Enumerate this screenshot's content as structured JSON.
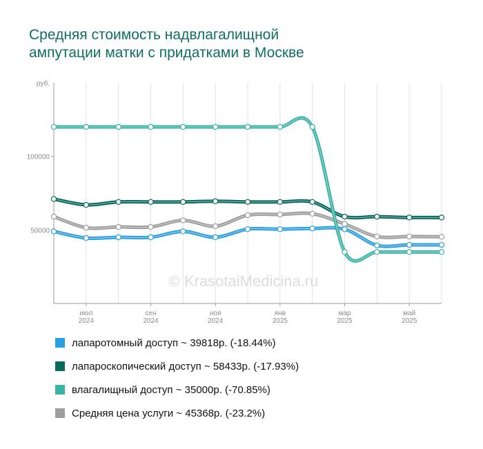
{
  "title": {
    "line1": "Средняя стоимость надвлагалищной",
    "line2": "ампутации матки с придатками в Москве"
  },
  "watermark": "© KrasotaiMedicina.ru",
  "chart_data": {
    "type": "line",
    "y_unit_label": "руб.",
    "ylim": [
      0,
      150000
    ],
    "y_ticks": [
      {
        "value": 100000,
        "label": "100000"
      },
      {
        "value": 50000,
        "label": "50000"
      }
    ],
    "x": [
      "2024-05",
      "2024-06",
      "2024-07",
      "2024-08",
      "2024-09",
      "2024-10",
      "2024-11",
      "2024-12",
      "2025-01",
      "2025-02",
      "2025-03",
      "2025-04",
      "2025-05"
    ],
    "x_tick_labels": [
      {
        "x": "2024-06",
        "line1": "июл",
        "line2": "2024"
      },
      {
        "x": "2024-08",
        "line1": "сен",
        "line2": "2024"
      },
      {
        "x": "2024-10",
        "line1": "ноя",
        "line2": "2024"
      },
      {
        "x": "2024-12",
        "line1": "янв",
        "line2": "2025"
      },
      {
        "x": "2025-02",
        "line1": "мар",
        "line2": "2025"
      },
      {
        "x": "2025-04",
        "line1": "май",
        "line2": "2025"
      }
    ],
    "grid": true,
    "legend_position": "bottom",
    "series": [
      {
        "name": "Средняя цена услуги",
        "color": "#9e9e9e",
        "values": [
          59000,
          51500,
          52000,
          52000,
          56500,
          52500,
          60000,
          60500,
          61000,
          54000,
          45500,
          45500,
          45368
        ]
      },
      {
        "name": "лапаротомный доступ",
        "color": "#2b9fe0",
        "values": [
          49000,
          44500,
          45000,
          45000,
          49000,
          45000,
          50500,
          50500,
          51000,
          50500,
          39500,
          39818,
          39818
        ]
      },
      {
        "name": "лапароскопический доступ",
        "color": "#0a6a5e",
        "values": [
          71000,
          67000,
          69000,
          69000,
          69000,
          69500,
          69000,
          69000,
          69000,
          59000,
          59000,
          58433,
          58433
        ]
      },
      {
        "name": "влагалищный доступ",
        "color": "#3bb3a4",
        "values": [
          120000,
          120000,
          120000,
          120000,
          120000,
          120000,
          120000,
          120000,
          120000,
          35000,
          35000,
          35000,
          35000
        ]
      }
    ]
  },
  "legend": [
    {
      "color": "#2b9fe0",
      "text": "лапаротомный доступ ~ 39818р. (-18.44%)"
    },
    {
      "color": "#0a6a5e",
      "text": "лапароскопический доступ ~ 58433р. (-17.93%)"
    },
    {
      "color": "#3bb3a4",
      "text": "влагалищный доступ ~ 35000р. (-70.85%)"
    },
    {
      "color": "#9e9e9e",
      "text": "Средняя цена услуги ~ 45368р. (-23.2%)"
    }
  ]
}
